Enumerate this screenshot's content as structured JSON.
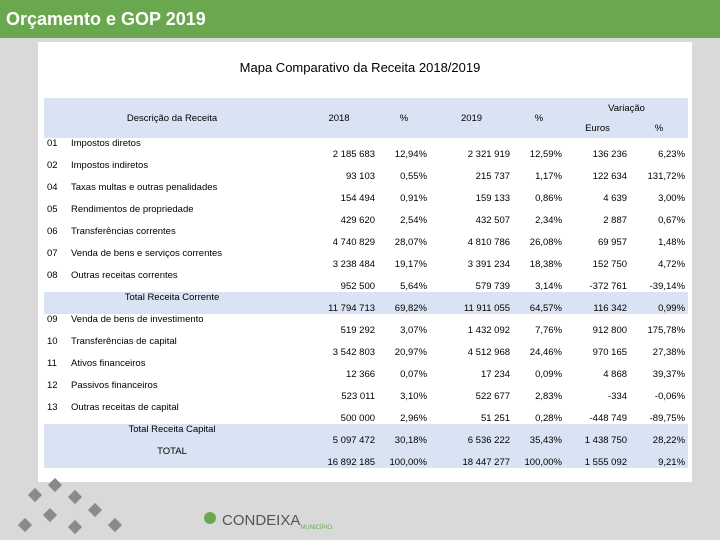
{
  "header": {
    "title": "Orçamento e GOP 2019"
  },
  "table": {
    "title": "Mapa Comparativo da Receita 2018/2019",
    "columns": {
      "description": "Descrição da Receita",
      "year1": "2018",
      "pct1": "%",
      "year2": "2019",
      "pct2": "%",
      "variation": "Variação",
      "euros": "Euros",
      "pct3": "%"
    },
    "rows": [
      {
        "code": "01",
        "label": "Impostos diretos",
        "cells": [
          "2 185 683",
          "12,94%",
          "2 321 919",
          "12,59%",
          "136 236",
          "6,23%"
        ]
      },
      {
        "code": "02",
        "label": "Impostos indiretos",
        "cells": [
          "93 103",
          "0,55%",
          "215 737",
          "1,17%",
          "122 634",
          "131,72%"
        ]
      },
      {
        "code": "04",
        "label": "Taxas multas e outras penalidades",
        "cells": [
          "154 494",
          "0,91%",
          "159 133",
          "0,86%",
          "4 639",
          "3,00%"
        ]
      },
      {
        "code": "05",
        "label": "Rendimentos de propriedade",
        "cells": [
          "429 620",
          "2,54%",
          "432 507",
          "2,34%",
          "2 887",
          "0,67%"
        ]
      },
      {
        "code": "06",
        "label": "Transferências correntes",
        "cells": [
          "4 740 829",
          "28,07%",
          "4 810 786",
          "26,08%",
          "69 957",
          "1,48%"
        ]
      },
      {
        "code": "07",
        "label": "Venda de bens e serviços correntes",
        "cells": [
          "3 238 484",
          "19,17%",
          "3 391 234",
          "18,38%",
          "152 750",
          "4,72%"
        ]
      },
      {
        "code": "08",
        "label": "Outras receitas correntes",
        "cells": [
          "952 500",
          "5,64%",
          "579 739",
          "3,14%",
          "-372 761",
          "-39,14%"
        ]
      },
      {
        "label": "Total Receita Corrente",
        "cells": [
          "11 794 713",
          "69,82%",
          "11 911 055",
          "64,57%",
          "116 342",
          "0,99%"
        ]
      },
      {
        "code": "09",
        "label": "Venda de bens de investimento",
        "cells": [
          "519 292",
          "3,07%",
          "1 432 092",
          "7,76%",
          "912 800",
          "175,78%"
        ]
      },
      {
        "code": "10",
        "label": "Transferências de capital",
        "cells": [
          "3 542 803",
          "20,97%",
          "4 512 968",
          "24,46%",
          "970 165",
          "27,38%"
        ]
      },
      {
        "code": "11",
        "label": "Ativos financeiros",
        "cells": [
          "12 366",
          "0,07%",
          "17 234",
          "0,09%",
          "4 868",
          "39,37%"
        ]
      },
      {
        "code": "12",
        "label": "Passivos financeiros",
        "cells": [
          "523 011",
          "3,10%",
          "522 677",
          "2,83%",
          "-334",
          "-0,06%"
        ]
      },
      {
        "code": "13",
        "label": "Outras receitas de capital",
        "cells": [
          "500 000",
          "2,96%",
          "51 251",
          "0,28%",
          "-448 749",
          "-89,75%"
        ]
      },
      {
        "label": "Total Receita Capital",
        "cells": [
          "5 097 472",
          "30,18%",
          "6 536 222",
          "35,43%",
          "1 438 750",
          "28,22%"
        ]
      },
      {
        "label": "TOTAL",
        "cells": [
          "16 892 185",
          "100,00%",
          "18 447 277",
          "100,00%",
          "1 555 092",
          "9,21%"
        ]
      }
    ]
  },
  "footer": {
    "logo": "CONDEIXA",
    "logo_sub": "MUNICÍPIO"
  }
}
